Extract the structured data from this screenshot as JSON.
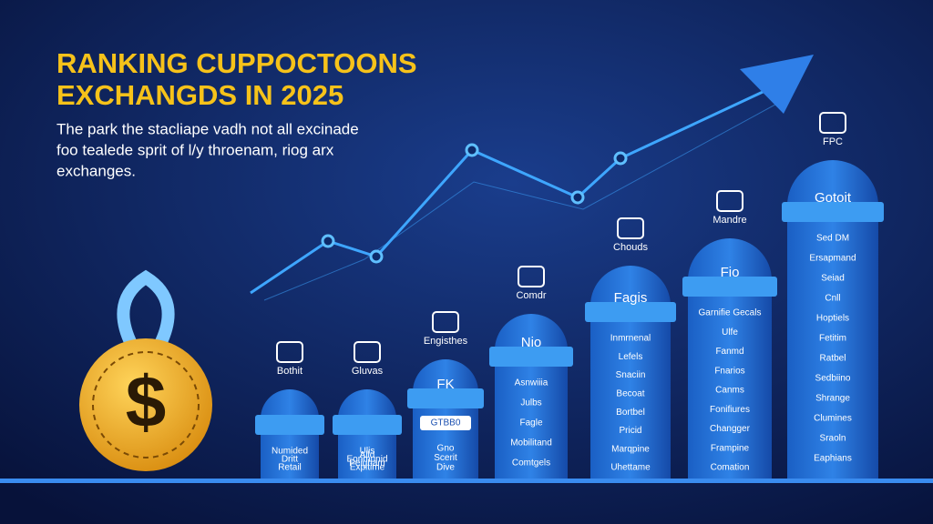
{
  "header": {
    "title": [
      "RANKING CUPPOCTOONS",
      "EXCHANGDS IN 2025"
    ],
    "subtitle": [
      "The park the stacliape vadh not all excinade",
      "foo tealede sprit of l/y throenam, riog arx",
      "exchanges."
    ]
  },
  "columns": [
    {
      "label": "Bothit",
      "items": [
        "Numided",
        "Dritt",
        "Retail"
      ]
    },
    {
      "label": "Gluvas",
      "items": [
        "Ulis",
        "Alld",
        "Eonmunid",
        "Peigham",
        "Expitime"
      ]
    },
    {
      "label": "Engisthes",
      "heading": "FK",
      "badge": "GTBB0",
      "items": [
        "Gno",
        "Scerit",
        "Dive"
      ]
    },
    {
      "label": "Comdr",
      "heading": "Nio",
      "items": [
        "Asnwiiia",
        "Julbs",
        "Fagle",
        "Mobilitand",
        "Comtgels"
      ]
    },
    {
      "label": "Chouds",
      "heading": "Fagis",
      "items": [
        "Inmrnenal",
        "Lefels",
        "Snaciin",
        "Becoat",
        "Bortbel",
        "Pricid",
        "Marqpine",
        "Uhettame"
      ]
    },
    {
      "label": "Mandre",
      "heading": "Fio",
      "items": [
        "Garnifie Gecals",
        "Ulfe",
        "Fanmd",
        "Fnarios",
        "Canms",
        "Fonifiures",
        "Changger",
        "Frampine",
        "Comation"
      ]
    },
    {
      "label": "FPC",
      "heading": "Gotoit",
      "items": [
        "Sed DM",
        "Ersapmand",
        "Seiad",
        "Cnll",
        "Hoptiels",
        "Fetitim",
        "Ratbel",
        "Sedbiino",
        "Shrange",
        "Clumines",
        "Sraoln",
        "Eaphians"
      ]
    }
  ]
}
